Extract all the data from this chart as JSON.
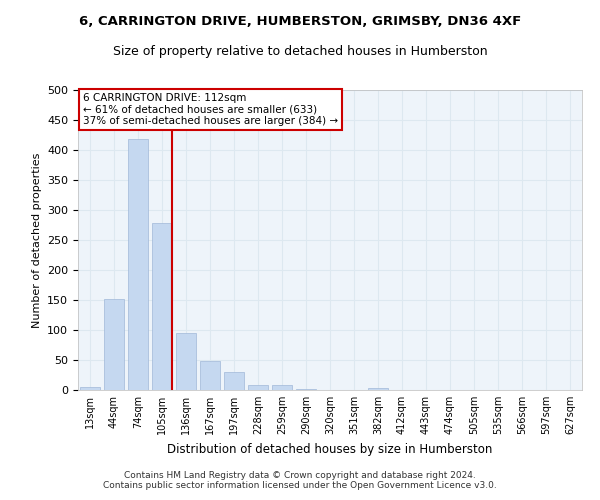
{
  "title1": "6, CARRINGTON DRIVE, HUMBERSTON, GRIMSBY, DN36 4XF",
  "title2": "Size of property relative to detached houses in Humberston",
  "xlabel": "Distribution of detached houses by size in Humberston",
  "ylabel": "Number of detached properties",
  "bar_color": "#c5d8f0",
  "bar_edge_color": "#a0b8d8",
  "bins": [
    "13sqm",
    "44sqm",
    "74sqm",
    "105sqm",
    "136sqm",
    "167sqm",
    "197sqm",
    "228sqm",
    "259sqm",
    "290sqm",
    "320sqm",
    "351sqm",
    "382sqm",
    "412sqm",
    "443sqm",
    "474sqm",
    "505sqm",
    "535sqm",
    "566sqm",
    "597sqm",
    "627sqm"
  ],
  "values": [
    5,
    151,
    418,
    278,
    95,
    48,
    30,
    8,
    9,
    2,
    0,
    0,
    3,
    0,
    0,
    0,
    0,
    0,
    0,
    0,
    0
  ],
  "vline_color": "#cc0000",
  "vline_index": 3,
  "annotation_text": "6 CARRINGTON DRIVE: 112sqm\n← 61% of detached houses are smaller (633)\n37% of semi-detached houses are larger (384) →",
  "annotation_box_color": "#ffffff",
  "annotation_box_edge": "#cc0000",
  "ylim": [
    0,
    500
  ],
  "yticks": [
    0,
    50,
    100,
    150,
    200,
    250,
    300,
    350,
    400,
    450,
    500
  ],
  "grid_color": "#dde8f0",
  "background_color": "#eef4fa",
  "footer": "Contains HM Land Registry data © Crown copyright and database right 2024.\nContains public sector information licensed under the Open Government Licence v3.0."
}
